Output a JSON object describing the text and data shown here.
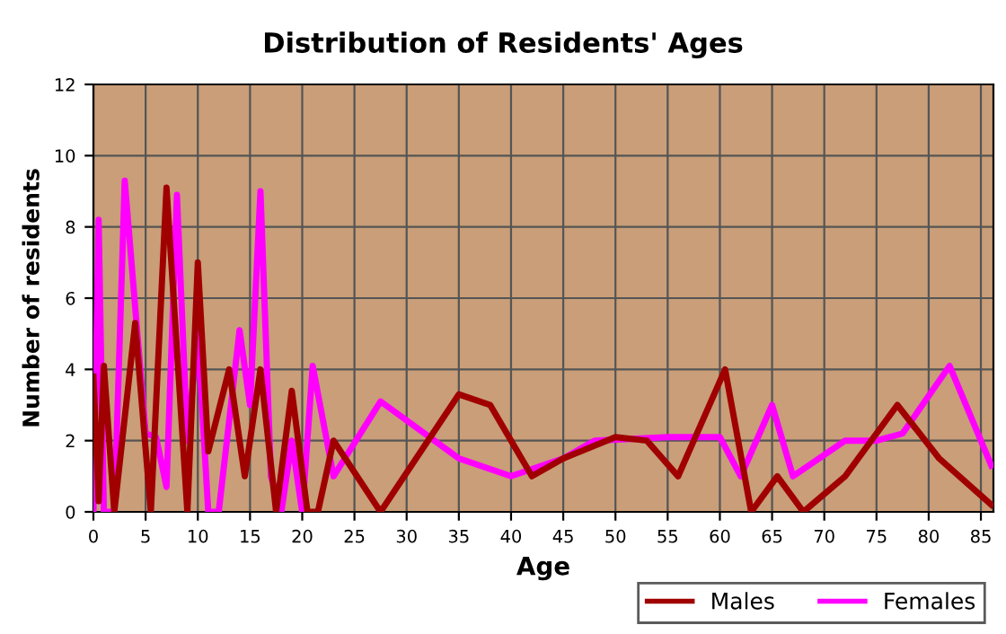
{
  "chart_data": {
    "type": "line",
    "title": "Distribution of Residents' Ages",
    "xlabel": "Age",
    "ylabel": "Number of residents",
    "xlim": [
      0,
      86.2
    ],
    "xticks": [
      0,
      5,
      10,
      15,
      20,
      25,
      30,
      35,
      40,
      45,
      50,
      55,
      60,
      65,
      70,
      75,
      80,
      85
    ],
    "ylim": [
      0,
      12
    ],
    "yticks": [
      0,
      2,
      4,
      6,
      8,
      10,
      12
    ],
    "grid": true,
    "legend": "bottom right",
    "marker": "none",
    "line_style": "solid",
    "series": [
      {
        "name": "Males",
        "color": "#a00000",
        "x": [
          0,
          0.5,
          1,
          2,
          4,
          5.5,
          7,
          9,
          10,
          11,
          13,
          14.5,
          16,
          17.5,
          19,
          20.5,
          21.5,
          23,
          27.5,
          35,
          38,
          42,
          45,
          50,
          53,
          56,
          60.5,
          63,
          65.5,
          68,
          72,
          77,
          81,
          86
        ],
        "values": [
          3.8,
          0.3,
          4.1,
          0,
          5.3,
          0,
          9.1,
          0,
          7,
          1.7,
          4,
          1,
          4,
          0,
          3.4,
          0,
          0,
          2,
          0,
          3.3,
          3,
          1,
          1.5,
          2.1,
          2,
          1,
          4,
          0,
          1,
          0,
          1,
          3,
          1.5,
          0.2
        ]
      },
      {
        "name": "Females",
        "color": "#ff00ff",
        "x": [
          0,
          0.5,
          1,
          2,
          3,
          5,
          6,
          7,
          8,
          9,
          10,
          11,
          12,
          14,
          15,
          16,
          17,
          18,
          19,
          20,
          21,
          23,
          27.5,
          35,
          40,
          45,
          48,
          55,
          60,
          62,
          65,
          67,
          72,
          75,
          77.5,
          82,
          86
        ],
        "values": [
          0,
          8.2,
          0,
          0,
          9.3,
          2.2,
          2.1,
          0.7,
          8.9,
          2,
          5,
          0,
          0,
          5.1,
          3,
          9,
          1,
          0,
          2,
          0,
          4.1,
          1,
          3.1,
          1.5,
          1,
          1.5,
          2,
          2.1,
          2.1,
          1,
          3,
          1,
          2,
          2,
          2.2,
          4.1,
          1.3
        ]
      }
    ]
  }
}
